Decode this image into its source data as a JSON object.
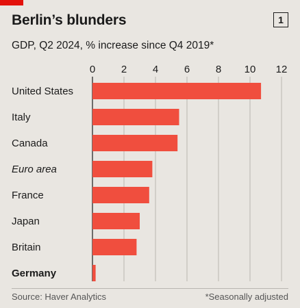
{
  "header": {
    "title": "Berlin’s blunders",
    "subtitle": "GDP, Q2 2024, % increase since Q4 2019*",
    "badge": "1"
  },
  "footer": {
    "source": "Source: Haver Analytics",
    "note": "*Seasonally adjusted"
  },
  "colors": {
    "bar": "#f04e3e",
    "accent": "#e3120b",
    "background": "#e9e6e1"
  },
  "chart_data": {
    "type": "bar",
    "orientation": "horizontal",
    "categories": [
      "United States",
      "Italy",
      "Canada",
      "Euro area",
      "France",
      "Japan",
      "Britain",
      "Germany"
    ],
    "category_styles": [
      "normal",
      "normal",
      "normal",
      "italic",
      "normal",
      "normal",
      "normal",
      "bold"
    ],
    "values": [
      10.7,
      5.5,
      5.4,
      3.8,
      3.6,
      3.0,
      2.8,
      0.2
    ],
    "xlim": [
      0,
      12
    ],
    "xticks": [
      0,
      2,
      4,
      6,
      8,
      10,
      12
    ],
    "tick_labels": [
      "0",
      "2",
      "4",
      "6",
      "8",
      "10",
      "12"
    ],
    "grid": true,
    "title": "Berlin’s blunders",
    "xlabel": "",
    "ylabel": ""
  }
}
